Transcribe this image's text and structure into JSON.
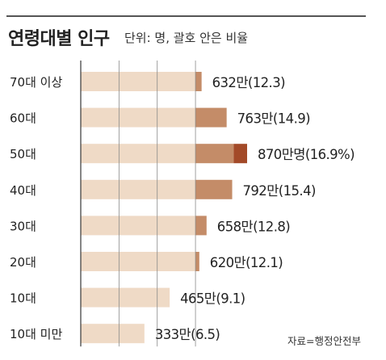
{
  "title": "연령대별 인구",
  "subtitle": "단위: 명, 괄호 안은 비율",
  "source": "자료=행정안전부",
  "colors": {
    "bar_base": "#efdac6",
    "seg_light": "#d9a988",
    "seg_mid": "#c48c68",
    "seg_dark": "#a34a28",
    "gridline": "#8a8a8a"
  },
  "chart_data": {
    "type": "bar",
    "orientation": "horizontal",
    "title": "연령대별 인구",
    "subtitle": "단위: 명, 괄호 안은 비율",
    "unit": "명",
    "categories": [
      "70대 이상",
      "60대",
      "50대",
      "40대",
      "30대",
      "20대",
      "10대",
      "10대 미만"
    ],
    "values": [
      6320000,
      7630000,
      8700000,
      7920000,
      6580000,
      6200000,
      4650000,
      3330000
    ],
    "shares_percent": [
      12.3,
      14.9,
      16.9,
      15.4,
      12.8,
      12.1,
      9.1,
      6.5
    ],
    "value_labels": [
      "632만(12.3)",
      "763만(14.9)",
      "870만명(16.9%)",
      "792만(15.4)",
      "658만(12.8)",
      "620만(12.1)",
      "465만(9.1)",
      "333만(6.5)"
    ],
    "xlim": [
      0,
      8700000
    ],
    "grid": true,
    "grid_values": [
      0,
      2000000,
      4000000,
      6000000
    ],
    "highlight_threshold": 6000000,
    "segment_tones": [
      "mid",
      "mid",
      "mid",
      "mid",
      "mid",
      "mid",
      "mid",
      "mid"
    ],
    "highlight_above": 8000000,
    "legend": "none",
    "source": "자료=행정안전부"
  }
}
